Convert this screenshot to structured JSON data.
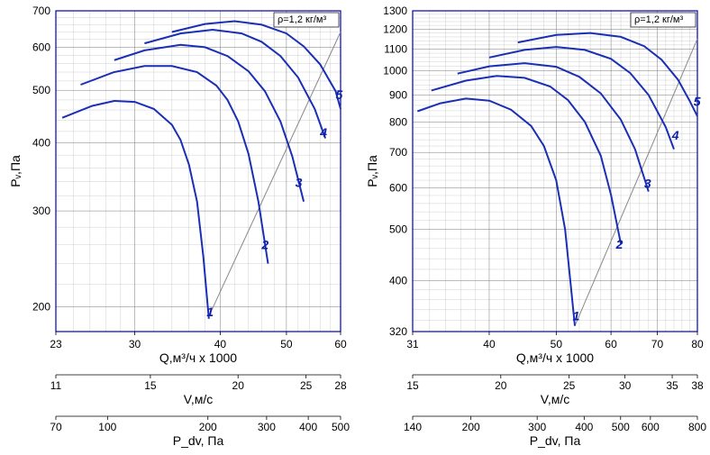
{
  "panel_left": {
    "type": "line-log",
    "annotation": "ρ=1,2 кг/м³",
    "y_label": "Pᵥ,Па",
    "x1_label": "Q,м³/ч x 1000",
    "x2_label": "V,м/с",
    "x3_label": "P_dv, Па",
    "curve_color": "#1a2fb5",
    "border_color": "#0000aa",
    "y_ticks": [
      200,
      300,
      400,
      500,
      600,
      700
    ],
    "x1_ticks": [
      23,
      30,
      40,
      50,
      60
    ],
    "x2_ticks": [
      11,
      15,
      20,
      25,
      28
    ],
    "x3_ticks": [
      70,
      100,
      200,
      300,
      400,
      500
    ],
    "x1_range": [
      23,
      60
    ],
    "y_range": [
      180,
      700
    ],
    "curves": {
      "1": [
        [
          23.5,
          445
        ],
        [
          26,
          468
        ],
        [
          28,
          478
        ],
        [
          30,
          476
        ],
        [
          32,
          462
        ],
        [
          34,
          432
        ],
        [
          35,
          405
        ],
        [
          36,
          365
        ],
        [
          37,
          312
        ],
        [
          37.8,
          247
        ],
        [
          38.5,
          190
        ]
      ],
      "2": [
        [
          25,
          512
        ],
        [
          28,
          540
        ],
        [
          31,
          554
        ],
        [
          34,
          554
        ],
        [
          37,
          540
        ],
        [
          39.5,
          510
        ],
        [
          41,
          480
        ],
        [
          42.5,
          438
        ],
        [
          44,
          382
        ],
        [
          45.5,
          312
        ],
        [
          47,
          240
        ]
      ],
      "3": [
        [
          28,
          568
        ],
        [
          31,
          592
        ],
        [
          35,
          606
        ],
        [
          38,
          600
        ],
        [
          41,
          578
        ],
        [
          44,
          542
        ],
        [
          46.5,
          498
        ],
        [
          49,
          438
        ],
        [
          51,
          378
        ],
        [
          53,
          312
        ]
      ],
      "4": [
        [
          31,
          610
        ],
        [
          35,
          636
        ],
        [
          39,
          646
        ],
        [
          43,
          636
        ],
        [
          46,
          614
        ],
        [
          49,
          578
        ],
        [
          52,
          528
        ],
        [
          55,
          462
        ],
        [
          57,
          408
        ]
      ],
      "5": [
        [
          34,
          640
        ],
        [
          38,
          662
        ],
        [
          42,
          670
        ],
        [
          46,
          660
        ],
        [
          50,
          636
        ],
        [
          53,
          602
        ],
        [
          56,
          558
        ],
        [
          59,
          498
        ],
        [
          60,
          462
        ]
      ]
    },
    "labels": {
      "1": [
        38.2,
        192
      ],
      "2": [
        46,
        255
      ],
      "3": [
        51.5,
        332
      ],
      "4": [
        56,
        410
      ],
      "5": [
        59,
        482
      ]
    },
    "diag": [
      [
        38.5,
        192
      ],
      [
        60,
        640
      ]
    ],
    "watermark": false
  },
  "panel_right": {
    "type": "line-log",
    "annotation": "ρ=1,2 кг/м³",
    "y_label": "Pᵥ,Па",
    "x1_label": "Q,м³/ч x 1000",
    "x2_label": "V,м/с",
    "x3_label": "P_dv, Па",
    "curve_color": "#1a2fb5",
    "border_color": "#0000aa",
    "y_ticks": [
      320,
      400,
      500,
      600,
      700,
      800,
      900,
      1000,
      1100,
      1200,
      1300
    ],
    "x1_ticks": [
      31,
      40,
      50,
      60,
      70,
      80
    ],
    "x2_ticks": [
      15,
      20,
      25,
      30,
      35,
      38
    ],
    "x3_ticks": [
      140,
      200,
      300,
      400,
      500,
      600,
      800
    ],
    "x1_range": [
      31,
      80
    ],
    "y_range": [
      320,
      1300
    ],
    "curves": {
      "1": [
        [
          31.5,
          838
        ],
        [
          34,
          868
        ],
        [
          37,
          886
        ],
        [
          40,
          878
        ],
        [
          43,
          844
        ],
        [
          46,
          786
        ],
        [
          48,
          720
        ],
        [
          50,
          620
        ],
        [
          51.5,
          500
        ],
        [
          52.5,
          390
        ],
        [
          53.2,
          328
        ]
      ],
      "2": [
        [
          33,
          918
        ],
        [
          37,
          958
        ],
        [
          41,
          978
        ],
        [
          45,
          970
        ],
        [
          49,
          934
        ],
        [
          52,
          880
        ],
        [
          55,
          800
        ],
        [
          58,
          690
        ],
        [
          60,
          582
        ],
        [
          62,
          470
        ]
      ],
      "3": [
        [
          36,
          988
        ],
        [
          40,
          1020
        ],
        [
          45,
          1034
        ],
        [
          50,
          1018
        ],
        [
          54,
          974
        ],
        [
          58,
          906
        ],
        [
          62,
          808
        ],
        [
          65,
          710
        ],
        [
          68,
          590
        ]
      ],
      "4": [
        [
          40,
          1060
        ],
        [
          45,
          1096
        ],
        [
          50,
          1110
        ],
        [
          55,
          1096
        ],
        [
          60,
          1054
        ],
        [
          64,
          990
        ],
        [
          68,
          900
        ],
        [
          72,
          782
        ],
        [
          74,
          710
        ]
      ],
      "5": [
        [
          44,
          1132
        ],
        [
          50,
          1170
        ],
        [
          56,
          1180
        ],
        [
          62,
          1160
        ],
        [
          67,
          1114
        ],
        [
          71,
          1050
        ],
        [
          75,
          962
        ],
        [
          78,
          876
        ],
        [
          80,
          820
        ]
      ]
    },
    "labels": {
      "1": [
        52.8,
        336
      ],
      "2": [
        61,
        460
      ],
      "3": [
        67,
        600
      ],
      "4": [
        73.5,
        740
      ],
      "5": [
        79,
        858
      ]
    },
    "diag": [
      [
        53.2,
        328
      ],
      [
        80,
        1150
      ]
    ],
    "watermark": false
  }
}
